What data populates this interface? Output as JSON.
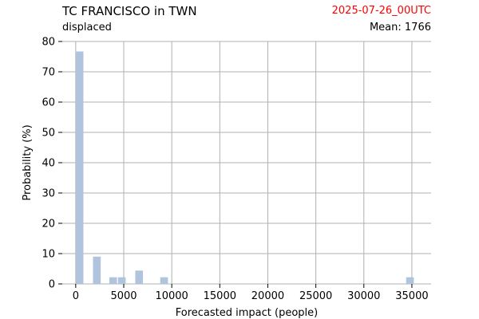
{
  "header": {
    "title": "TC FRANCISCO in TWN",
    "subtitle": "displaced",
    "date": "2025-07-26_00UTC",
    "mean_label": "Mean: 1766"
  },
  "colors": {
    "bar": "#b0c4de",
    "grid": "#b0b0b0",
    "date_text": "#ff0000",
    "text": "#000000"
  },
  "chart_data": {
    "type": "bar",
    "title": "TC FRANCISCO in TWN",
    "subtitle": "displaced",
    "xlabel": "Forecasted impact (people)",
    "ylabel": "Probability (%)",
    "xlim": [
      -1400,
      37000
    ],
    "ylim": [
      0,
      80
    ],
    "xticks": [
      0,
      5000,
      10000,
      15000,
      20000,
      25000,
      30000,
      35000
    ],
    "yticks": [
      0,
      10,
      20,
      30,
      40,
      50,
      60,
      70,
      80
    ],
    "grid": true,
    "bin_width": 800,
    "bins": [
      {
        "x": 400,
        "value": 76.7
      },
      {
        "x": 2200,
        "value": 9.0
      },
      {
        "x": 3900,
        "value": 2.2
      },
      {
        "x": 4800,
        "value": 2.2
      },
      {
        "x": 6600,
        "value": 4.4
      },
      {
        "x": 9200,
        "value": 2.2
      },
      {
        "x": 34800,
        "value": 2.2
      }
    ]
  }
}
